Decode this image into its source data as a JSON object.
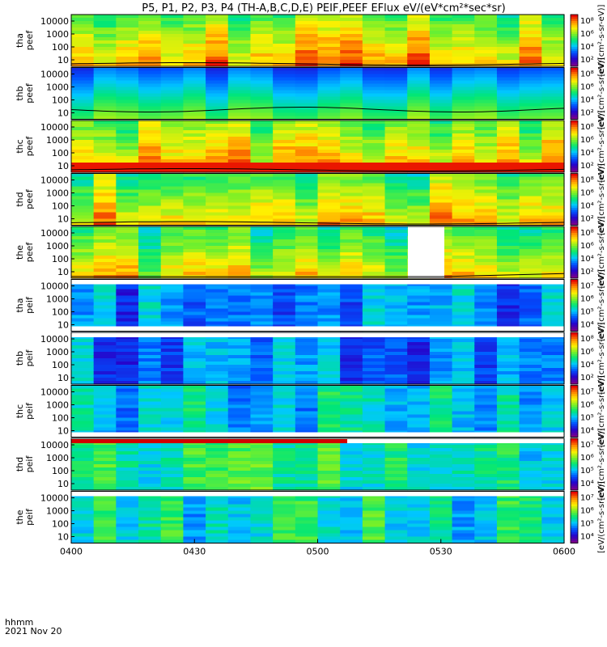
{
  "chart_data": {
    "type": "heatmap",
    "title": "P5, P1, P2, P3, P4 (TH-A,B,C,D,E) PEIF,PEEF EFlux eV/(eV*cm²*sec*sr)",
    "x_tick_labels": [
      "0400",
      "0430",
      "0500",
      "0530",
      "0600"
    ],
    "x_label": "hhmm",
    "date_label": "2021 Nov 20",
    "colorbar_label": "[eV/(cm²-s-sr-eV)]",
    "panels": [
      {
        "ylabel_top": "tha",
        "ylabel_bottom": "peef",
        "yticks": [
          "10000",
          "1000",
          "100",
          "10"
        ],
        "cb_ticks": [
          "10⁸",
          "10⁶",
          "10⁴",
          "10²"
        ],
        "cb_label": "[eV/(cm²-s-sr-eV)]",
        "white_bands": [],
        "gap": null,
        "red_bar": null,
        "black_line": "low"
      },
      {
        "ylabel_top": "thb",
        "ylabel_bottom": "peef",
        "yticks": [
          "10000",
          "1000",
          "100",
          "10"
        ],
        "cb_ticks": [
          "10⁸",
          "10⁶",
          "10⁴",
          "10²"
        ],
        "cb_label": "[eV/(cm²-s-sr-eV)]",
        "white_bands": [],
        "gap": null,
        "red_bar": null,
        "black_line": "wave"
      },
      {
        "ylabel_top": "thc",
        "ylabel_bottom": "peef",
        "yticks": [
          "10000",
          "1000",
          "100",
          "10"
        ],
        "cb_ticks": [
          "10⁸",
          "10⁶",
          "10⁴",
          "10²"
        ],
        "cb_label": "[eV/(cm²-s-sr-eV)]",
        "white_bands": [],
        "gap": null,
        "red_bar": null,
        "black_line": "low"
      },
      {
        "ylabel_top": "thd",
        "ylabel_bottom": "peef",
        "yticks": [
          "10000",
          "1000",
          "100",
          "10"
        ],
        "cb_ticks": [
          "10⁸",
          "10⁶",
          "10⁴",
          "10²"
        ],
        "cb_label": "[eV/(cm²-s-sr-eV)]",
        "white_bands": [],
        "gap": null,
        "red_bar": null,
        "black_line": "low"
      },
      {
        "ylabel_top": "the",
        "ylabel_bottom": "peef",
        "yticks": [
          "10000",
          "1000",
          "100",
          "10"
        ],
        "cb_ticks": [
          "10⁸",
          "10⁶",
          "10⁴",
          "10²"
        ],
        "cb_label": "[eV/(cm²-s-sr-eV)]",
        "white_bands": [],
        "gap": [
          0.683,
          0.757
        ],
        "red_bar": null,
        "black_line": "end"
      },
      {
        "ylabel_top": "tha",
        "ylabel_bottom": "peif",
        "yticks": [
          "10000",
          "1000",
          "100",
          "10"
        ],
        "cb_ticks": [
          "10⁷",
          "10⁶",
          "10⁵",
          "10⁴"
        ],
        "cb_label": "[eV/(cm²-s-sr-eV)]",
        "white_bands": [
          "top",
          "bottom"
        ],
        "gap": null,
        "red_bar": null,
        "black_line": null
      },
      {
        "ylabel_top": "thb",
        "ylabel_bottom": "peif",
        "yticks": [
          "10000",
          "1000",
          "100",
          "10"
        ],
        "cb_ticks": [
          "10⁸",
          "10⁶",
          "10⁴",
          "10²"
        ],
        "cb_label": "[eV/(cm²-s-sr-eV)]",
        "white_bands": [
          "top"
        ],
        "gap": null,
        "red_bar": null,
        "black_line": null
      },
      {
        "ylabel_top": "thc",
        "ylabel_bottom": "peif",
        "yticks": [
          "10000",
          "1000",
          "100",
          "10"
        ],
        "cb_ticks": [
          "10⁷",
          "10⁶",
          "10⁵",
          "10⁴"
        ],
        "cb_label": "[eV/(cm²-s-sr-eV)]",
        "white_bands": [
          "bottom"
        ],
        "gap": null,
        "red_bar": null,
        "black_line": null
      },
      {
        "ylabel_top": "thd",
        "ylabel_bottom": "peif",
        "yticks": [
          "10000",
          "1000",
          "100",
          "10"
        ],
        "cb_ticks": [
          "10⁷",
          "10⁶",
          "10⁵",
          "10⁴"
        ],
        "cb_label": "[eV/(cm²-s-sr-eV)]",
        "white_bands": [
          "top"
        ],
        "gap": null,
        "red_bar": [
          0,
          0.56
        ],
        "black_line": null
      },
      {
        "ylabel_top": "the",
        "ylabel_bottom": "peif",
        "yticks": [
          "10000",
          "1000",
          "100",
          "10"
        ],
        "cb_ticks": [
          "10⁷",
          "10⁶",
          "10⁵",
          "10⁴"
        ],
        "cb_label": "[eV/(cm²-s-sr-eV)]",
        "white_bands": [
          "top"
        ],
        "gap": null,
        "red_bar": null,
        "black_line": null
      }
    ]
  }
}
